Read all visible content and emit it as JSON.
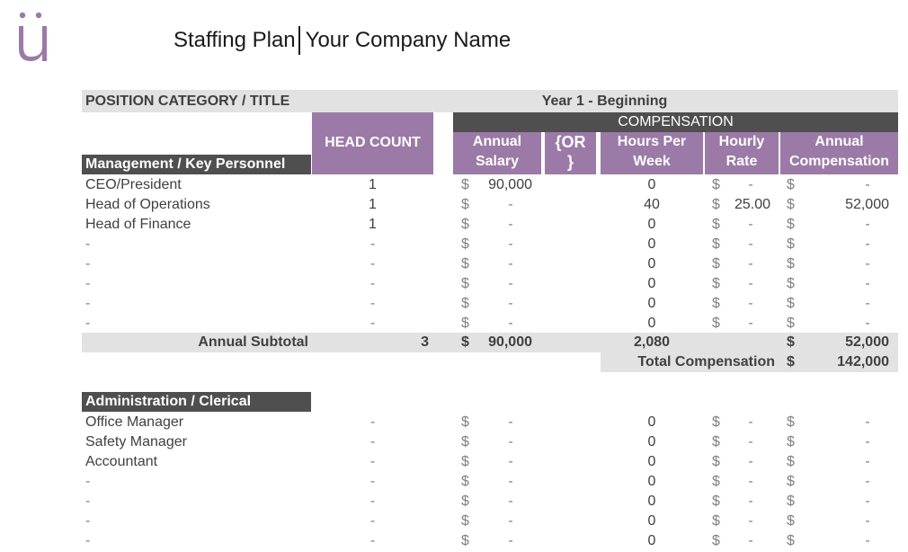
{
  "logo": {
    "glyph": "ü",
    "color": "#9b7aa7"
  },
  "title": {
    "left": "Staffing Plan",
    "right": "Your Company Name"
  },
  "header": {
    "position_category": "POSITION CATEGORY / TITLE",
    "year": "Year 1 - Beginning",
    "head_count": "HEAD COUNT",
    "compensation": "COMPENSATION",
    "annual_salary": [
      "Annual",
      "Salary"
    ],
    "or": [
      "{OR",
      "}"
    ],
    "hours_per_week": [
      "Hours Per",
      "Week"
    ],
    "hourly_rate": [
      "Hourly",
      "Rate"
    ],
    "annual_compensation": [
      "Annual",
      "Compensation"
    ]
  },
  "sections": [
    {
      "label": "Management / Key Personnel",
      "rows": [
        {
          "title": "CEO/President",
          "head": "1",
          "salary": "90,000",
          "hours": "0",
          "rate": "-",
          "comp": "-"
        },
        {
          "title": "Head of Operations",
          "head": "1",
          "salary": "-",
          "hours": "40",
          "rate": "25.00",
          "comp": "52,000"
        },
        {
          "title": "Head of Finance",
          "head": "1",
          "salary": "-",
          "hours": "0",
          "rate": "-",
          "comp": "-"
        },
        {
          "title": "-",
          "head": "-",
          "salary": "-",
          "hours": "0",
          "rate": "-",
          "comp": "-"
        },
        {
          "title": "-",
          "head": "-",
          "salary": "-",
          "hours": "0",
          "rate": "-",
          "comp": "-"
        },
        {
          "title": "-",
          "head": "-",
          "salary": "-",
          "hours": "0",
          "rate": "-",
          "comp": "-"
        },
        {
          "title": "-",
          "head": "-",
          "salary": "-",
          "hours": "0",
          "rate": "-",
          "comp": "-"
        },
        {
          "title": "-",
          "head": "-",
          "salary": "-",
          "hours": "0",
          "rate": "-",
          "comp": "-"
        }
      ],
      "subtotal": {
        "label": "Annual Subtotal",
        "head": "3",
        "salary": "90,000",
        "hours": "2,080",
        "comp": "52,000"
      },
      "total": {
        "label": "Total Compensation",
        "value": "142,000"
      }
    },
    {
      "label": "Administration / Clerical",
      "rows": [
        {
          "title": "Office Manager",
          "head": "-",
          "salary": "-",
          "hours": "0",
          "rate": "-",
          "comp": "-"
        },
        {
          "title": "Safety Manager",
          "head": "-",
          "salary": "-",
          "hours": "0",
          "rate": "-",
          "comp": "-"
        },
        {
          "title": "Accountant",
          "head": "-",
          "salary": "-",
          "hours": "0",
          "rate": "-",
          "comp": "-"
        },
        {
          "title": "-",
          "head": "-",
          "salary": "-",
          "hours": "0",
          "rate": "-",
          "comp": "-"
        },
        {
          "title": "-",
          "head": "-",
          "salary": "-",
          "hours": "0",
          "rate": "-",
          "comp": "-"
        },
        {
          "title": "-",
          "head": "-",
          "salary": "-",
          "hours": "0",
          "rate": "-",
          "comp": "-"
        },
        {
          "title": "-",
          "head": "-",
          "salary": "-",
          "hours": "0",
          "rate": "-",
          "comp": "-"
        }
      ]
    }
  ],
  "currency": "$",
  "colors": {
    "purple": "#9b7aa7",
    "dark": "#4f4f4f",
    "gray": "#e2e2e2"
  }
}
